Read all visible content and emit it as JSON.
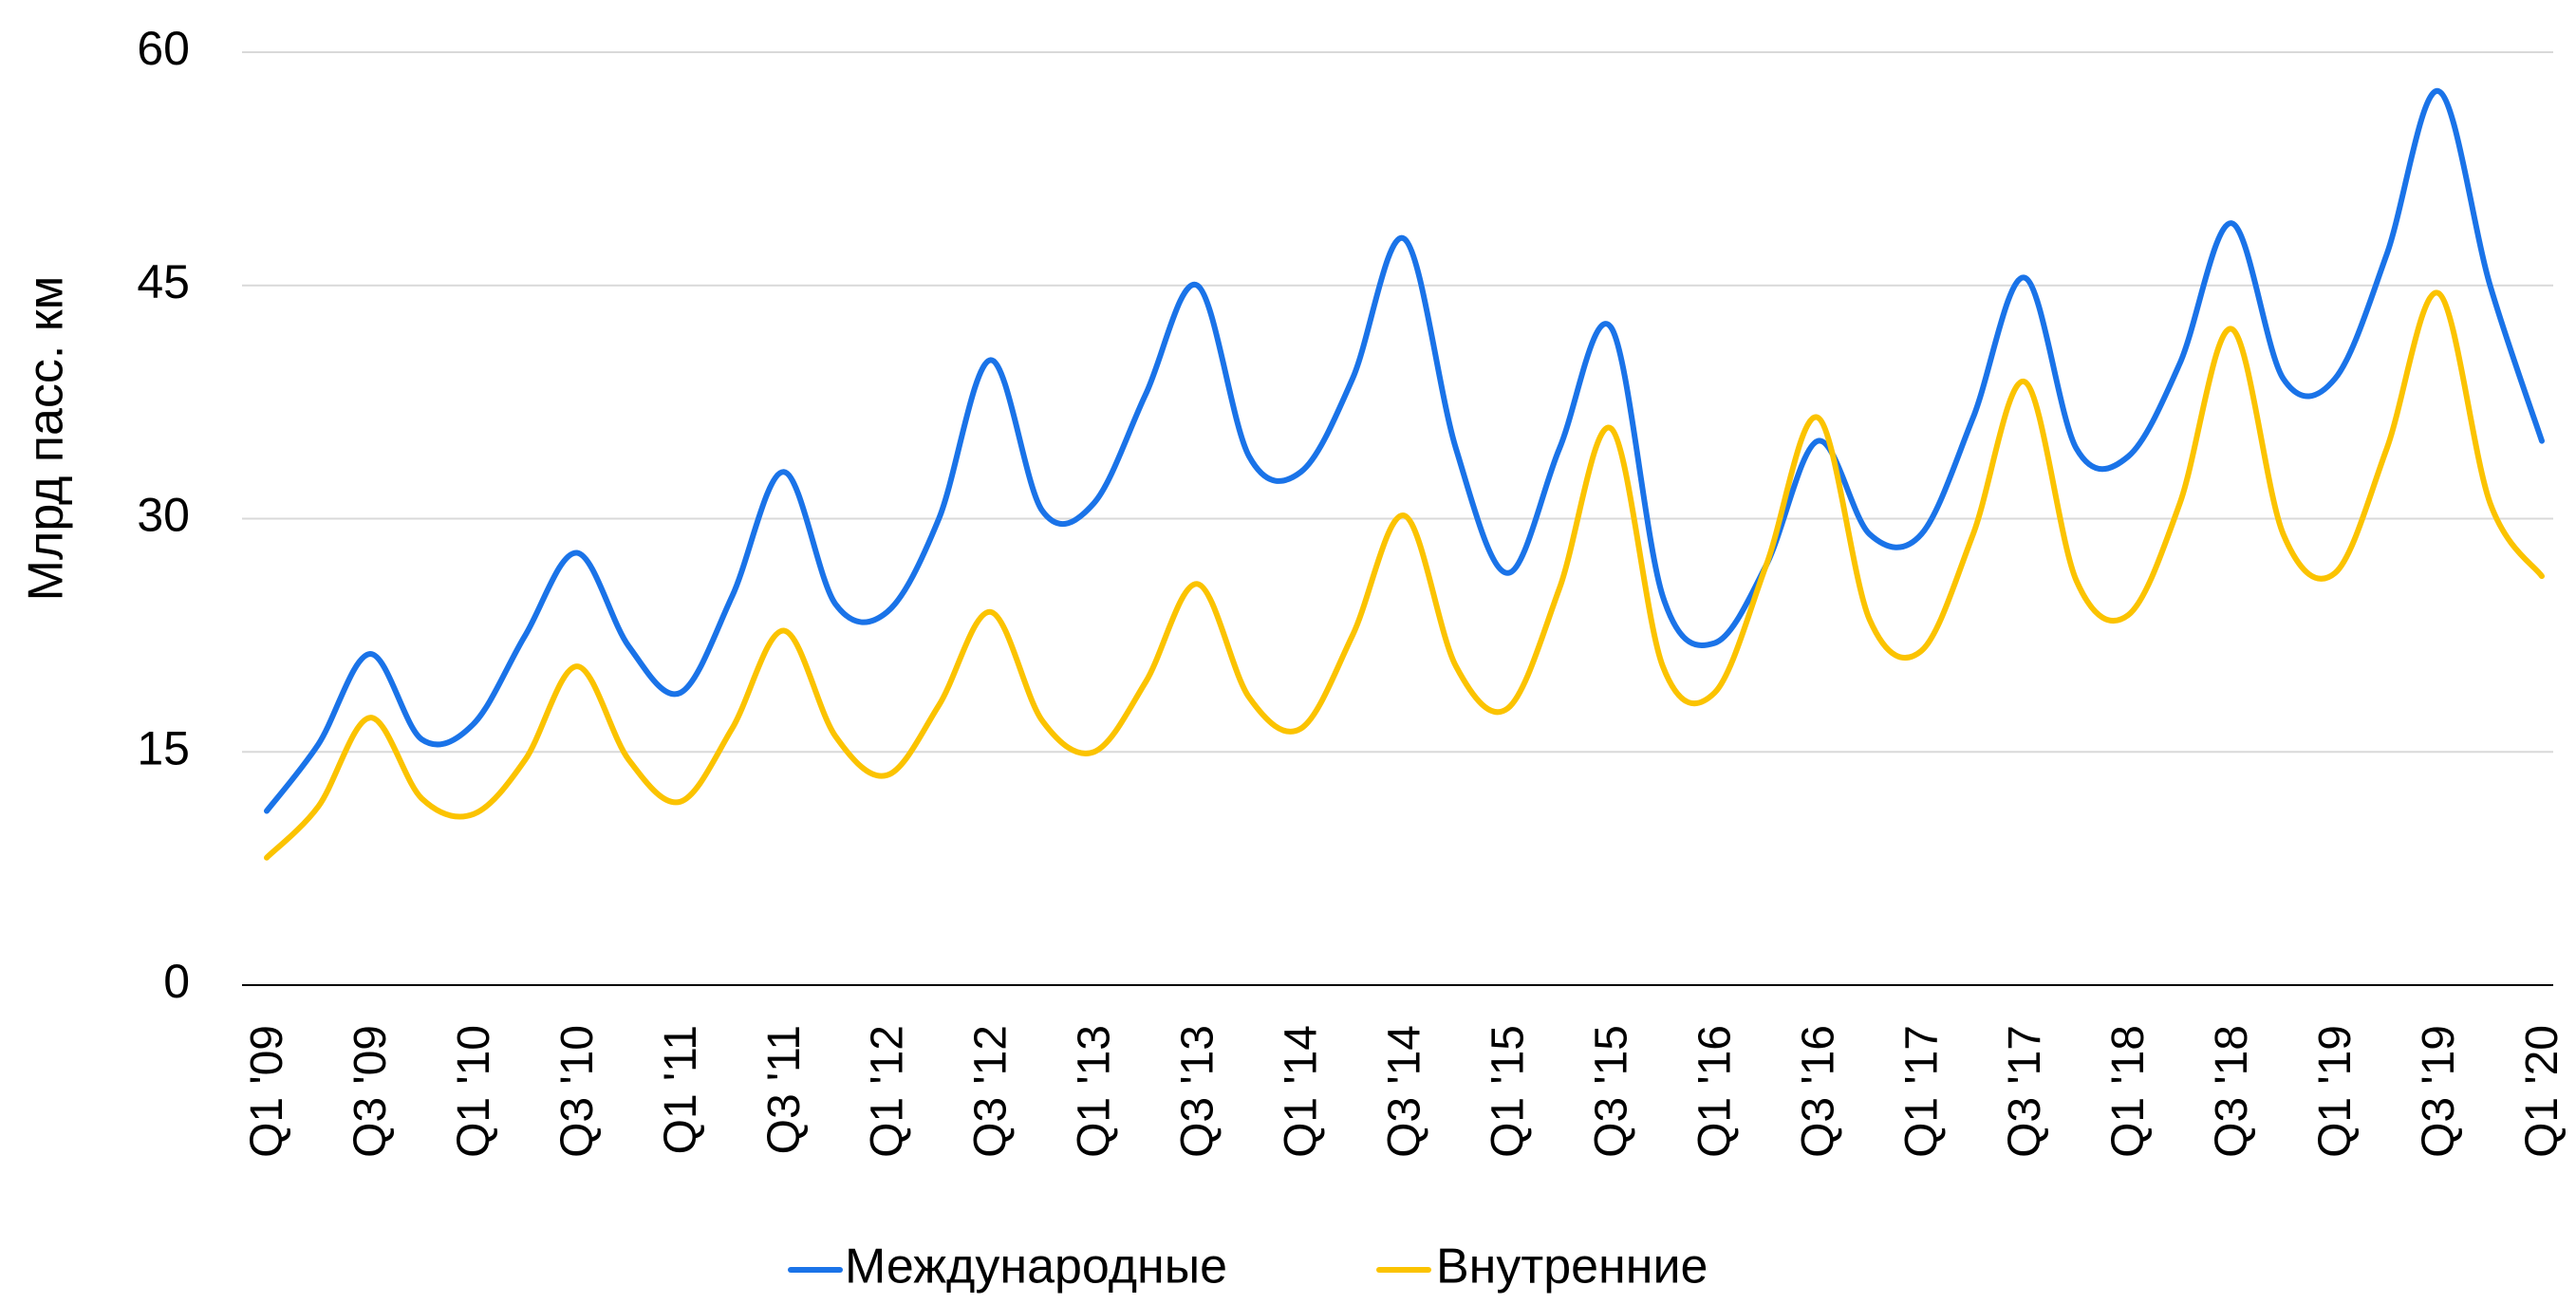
{
  "chart_data": {
    "type": "line",
    "title": "",
    "xlabel": "",
    "ylabel": "Млрд пасс. км",
    "ylim": [
      0,
      60
    ],
    "yticks": [
      0,
      15,
      30,
      45,
      60
    ],
    "grid": true,
    "legend_position": "bottom",
    "x_tick_labels": [
      "Q1 '09",
      "Q3 '09",
      "Q1 '10",
      "Q3 '10",
      "Q1 '11",
      "Q3 '11",
      "Q1 '12",
      "Q3 '12",
      "Q1 '13",
      "Q3 '13",
      "Q1 '14",
      "Q3 '14",
      "Q1 '15",
      "Q3 '15",
      "Q1 '16",
      "Q3 '16",
      "Q1 '17",
      "Q3 '17",
      "Q1 '18",
      "Q3 '18",
      "Q1 '19",
      "Q3 '19",
      "Q1 '20"
    ],
    "x": [
      "Q1 '09",
      "Q2 '09",
      "Q3 '09",
      "Q4 '09",
      "Q1 '10",
      "Q2 '10",
      "Q3 '10",
      "Q4 '10",
      "Q1 '11",
      "Q2 '11",
      "Q3 '11",
      "Q4 '11",
      "Q1 '12",
      "Q2 '12",
      "Q3 '12",
      "Q4 '12",
      "Q1 '13",
      "Q2 '13",
      "Q3 '13",
      "Q4 '13",
      "Q1 '14",
      "Q2 '14",
      "Q3 '14",
      "Q4 '14",
      "Q1 '15",
      "Q2 '15",
      "Q3 '15",
      "Q4 '15",
      "Q1 '16",
      "Q2 '16",
      "Q3 '16",
      "Q4 '16",
      "Q1 '17",
      "Q2 '17",
      "Q3 '17",
      "Q4 '17",
      "Q1 '18",
      "Q2 '18",
      "Q3 '18",
      "Q4 '18",
      "Q1 '19",
      "Q2 '19",
      "Q3 '19",
      "Q4 '19",
      "Q1 '20"
    ],
    "series": [
      {
        "name": "Международные",
        "color": "#1a73e8",
        "values": [
          11.2,
          15.5,
          21.3,
          15.8,
          16.8,
          22.5,
          27.8,
          21.8,
          18.8,
          25.0,
          33.0,
          24.5,
          24.0,
          30.0,
          40.2,
          30.5,
          31.0,
          38.0,
          45.0,
          34.0,
          33.0,
          39.0,
          48.0,
          34.5,
          26.5,
          34.5,
          42.3,
          25.0,
          22.0,
          27.0,
          35.0,
          29.0,
          29.0,
          36.5,
          45.5,
          34.5,
          34.0,
          40.0,
          49.0,
          39.0,
          39.0,
          47.0,
          57.5,
          45.0,
          35.0
        ]
      },
      {
        "name": "Внутренние",
        "color": "#fbc300",
        "values": [
          8.2,
          11.5,
          17.2,
          12.0,
          11.0,
          14.5,
          20.5,
          14.5,
          11.8,
          16.5,
          22.8,
          16.0,
          13.5,
          18.0,
          24.0,
          17.0,
          15.0,
          19.5,
          25.8,
          18.5,
          16.5,
          22.5,
          30.2,
          20.5,
          17.8,
          25.5,
          35.8,
          20.5,
          18.8,
          27.0,
          36.5,
          23.5,
          21.5,
          29.0,
          38.8,
          26.0,
          23.8,
          31.0,
          42.2,
          29.0,
          26.5,
          34.5,
          44.5,
          31.0,
          26.3
        ]
      }
    ]
  }
}
